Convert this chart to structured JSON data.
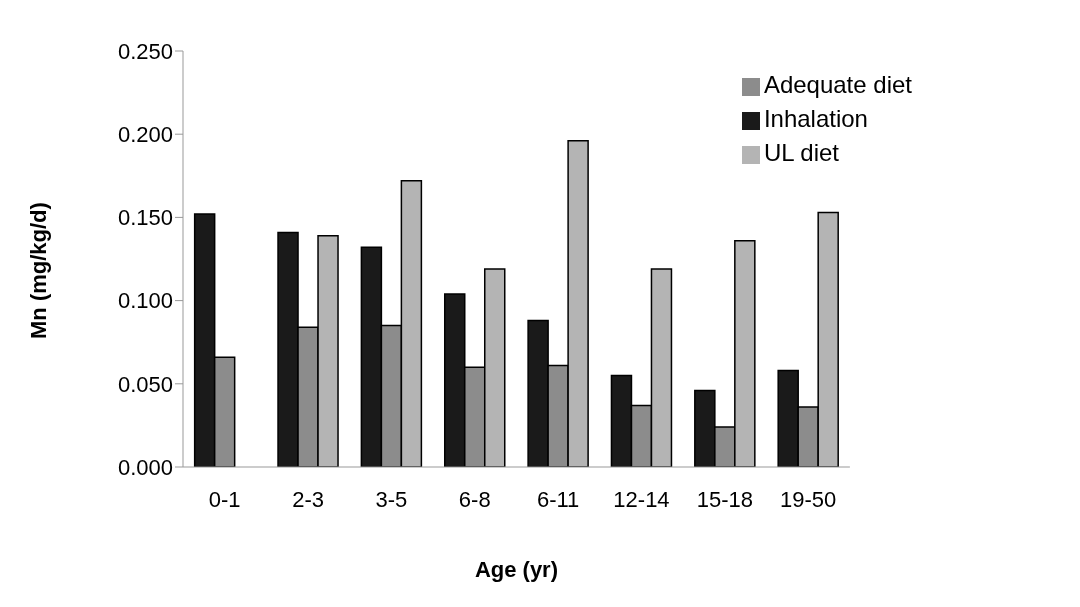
{
  "chart_data": {
    "type": "bar",
    "xlabel": "Age (yr)",
    "ylabel": "Mn (mg/kg/d)",
    "categories": [
      "0-1",
      "2-3",
      "3-5",
      "6-8",
      "6-11",
      "12-14",
      "15-18",
      "19-50"
    ],
    "series": [
      {
        "name": "Inhalation",
        "color": "#1a1a1a",
        "values": [
          0.152,
          0.141,
          0.132,
          0.104,
          0.088,
          0.055,
          0.046,
          0.058
        ]
      },
      {
        "name": "Adequate diet",
        "color": "#8c8c8c",
        "values": [
          0.066,
          0.084,
          0.085,
          0.06,
          0.061,
          0.037,
          0.024,
          0.036
        ]
      },
      {
        "name": "UL diet",
        "color": "#b4b4b4",
        "values": [
          null,
          0.139,
          0.172,
          0.119,
          0.196,
          0.119,
          0.136,
          0.153
        ]
      }
    ],
    "ylim": [
      0,
      0.25
    ],
    "yticks": [
      {
        "value": 0,
        "label": "0.000"
      },
      {
        "value": 0.05,
        "label": "0.050"
      },
      {
        "value": 0.1,
        "label": "0.100"
      },
      {
        "value": 0.15,
        "label": "0.150"
      },
      {
        "value": 0.2,
        "label": "0.200"
      },
      {
        "value": 0.25,
        "label": "0.250"
      }
    ],
    "grid": false,
    "legend": "top right"
  }
}
